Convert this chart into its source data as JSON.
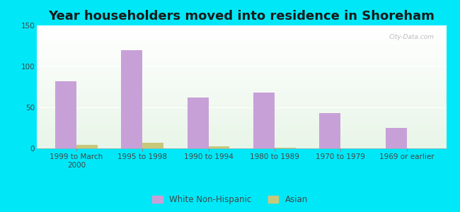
{
  "title": "Year householders moved into residence in Shoreham",
  "categories": [
    "1999 to March\n2000",
    "1995 to 1998",
    "1990 to 1994",
    "1980 to 1989",
    "1970 to 1979",
    "1969 or earlier"
  ],
  "white_values": [
    82,
    120,
    62,
    68,
    43,
    25
  ],
  "asian_values": [
    4,
    7,
    3,
    1,
    0,
    0
  ],
  "white_color": "#c8a0d8",
  "asian_color": "#c8c87a",
  "bg_outer": "#00e8f8",
  "ylim": [
    0,
    150
  ],
  "yticks": [
    0,
    50,
    100,
    150
  ],
  "bar_width": 0.32,
  "title_fontsize": 13,
  "tick_fontsize": 7.5,
  "legend_fontsize": 8.5,
  "watermark": "City-Data.com"
}
